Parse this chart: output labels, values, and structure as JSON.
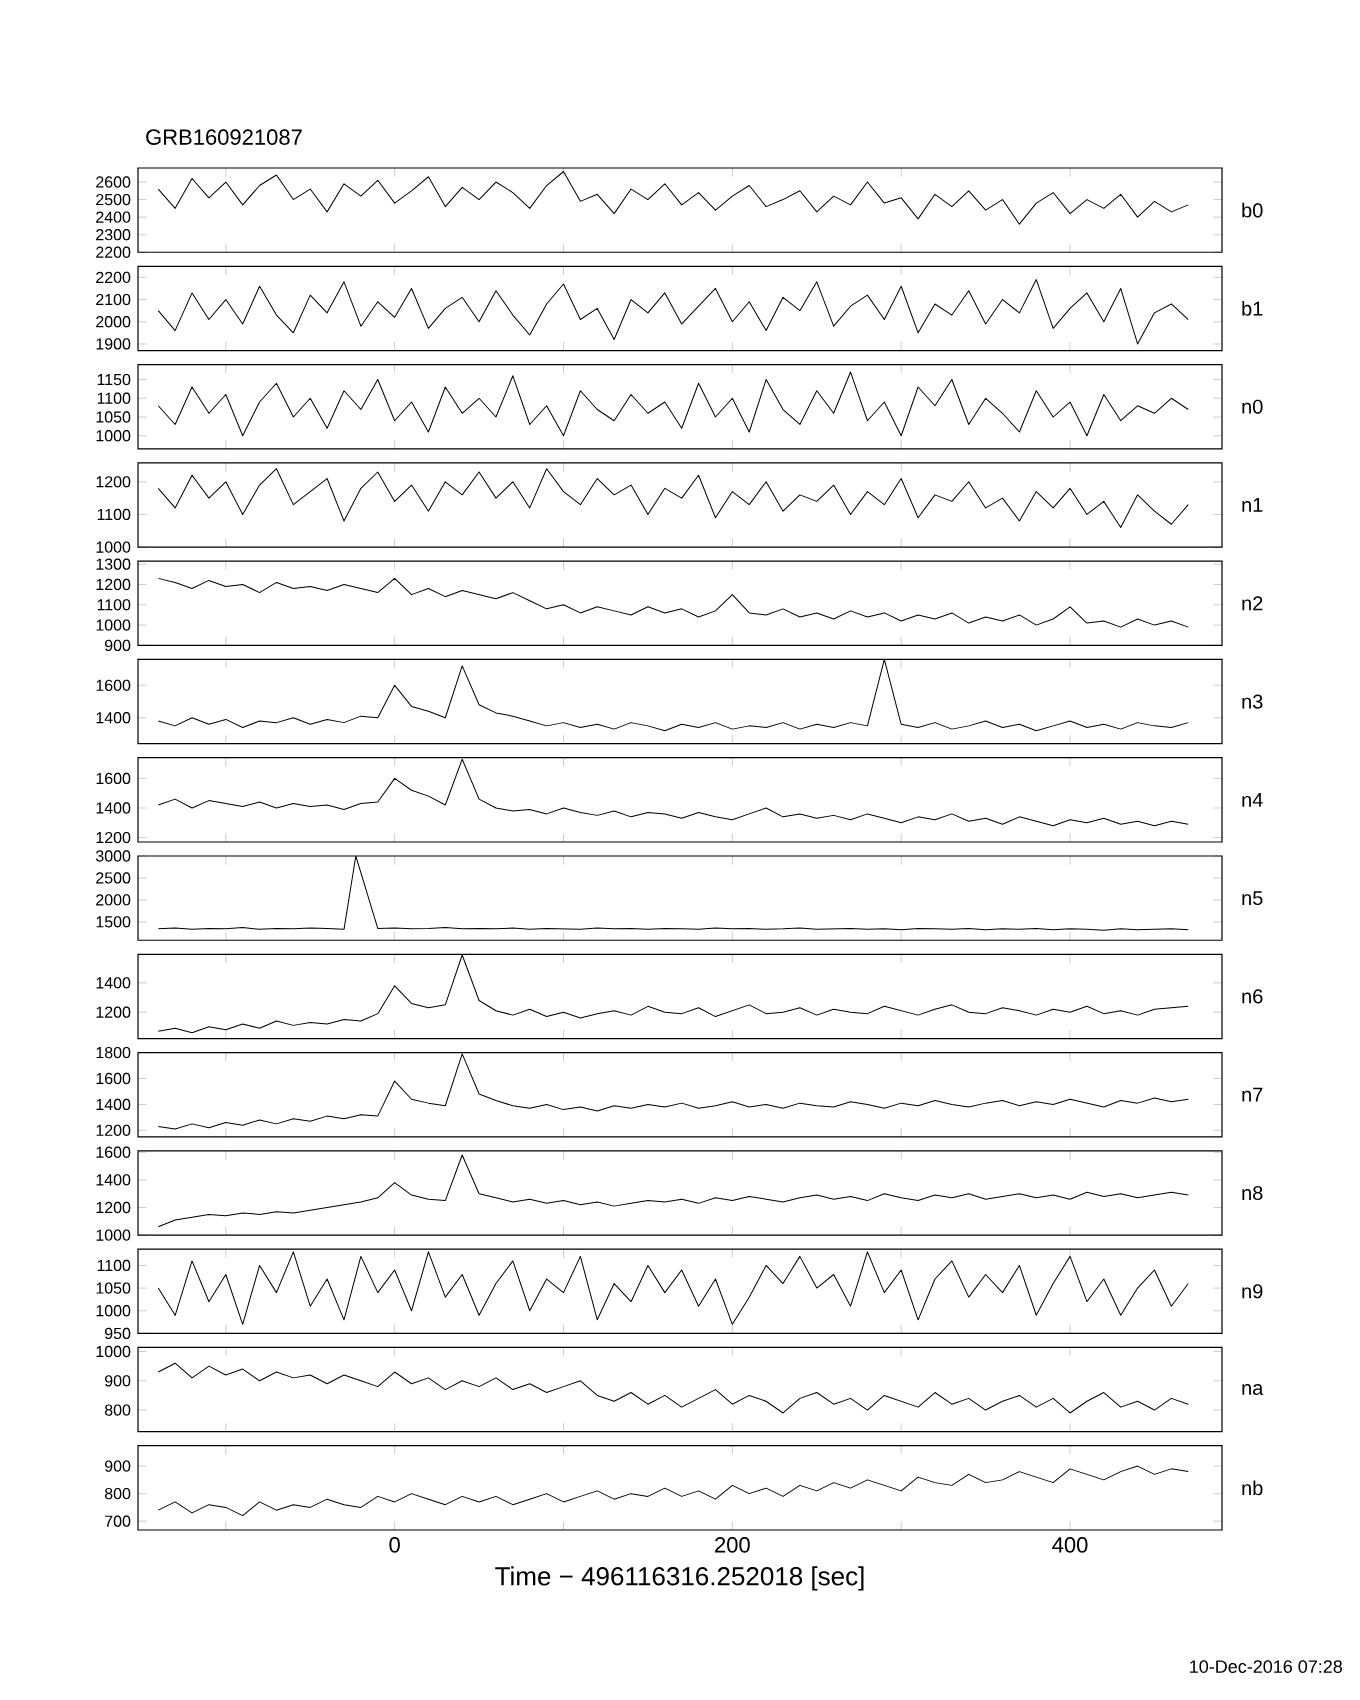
{
  "chart_data": [
    {
      "type": "line",
      "title": "GRB160921087",
      "y2label": "b0",
      "color": "#000000",
      "tick_labels": "y",
      "xlim": [
        -152,
        490
      ],
      "xticks": [
        {
          "value": -100,
          "label": null
        },
        0,
        {
          "value": 100,
          "label": null
        },
        200,
        {
          "value": 300,
          "label": null
        },
        400
      ],
      "ylim": [
        2200,
        2680
      ],
      "yticks": [
        2200,
        2300,
        2400,
        2500,
        2600
      ],
      "x": [
        -140,
        -130,
        -120,
        -110,
        -100,
        -90,
        -80,
        -70,
        -60,
        -50,
        -40,
        -30,
        -20,
        -10,
        0,
        10,
        20,
        30,
        40,
        50,
        60,
        70,
        80,
        90,
        100,
        110,
        120,
        130,
        140,
        150,
        160,
        170,
        180,
        190,
        200,
        210,
        220,
        230,
        240,
        250,
        260,
        270,
        280,
        290,
        300,
        310,
        320,
        330,
        340,
        350,
        360,
        370,
        380,
        390,
        400,
        410,
        420,
        430,
        440,
        450,
        460,
        470
      ],
      "values": [
        2560,
        2450,
        2620,
        2510,
        2600,
        2470,
        2580,
        2640,
        2500,
        2560,
        2430,
        2590,
        2520,
        2610,
        2480,
        2550,
        2630,
        2460,
        2570,
        2500,
        2600,
        2540,
        2450,
        2580,
        2660,
        2490,
        2530,
        2420,
        2560,
        2500,
        2590,
        2470,
        2540,
        2440,
        2520,
        2580,
        2460,
        2500,
        2550,
        2430,
        2520,
        2470,
        2600,
        2480,
        2510,
        2390,
        2530,
        2460,
        2550,
        2440,
        2500,
        2360,
        2480,
        2540,
        2420,
        2500,
        2450,
        2530,
        2400,
        2490,
        2430,
        2470
      ]
    },
    {
      "type": "line",
      "y2label": "b1",
      "color": "#000000",
      "tick_labels": "y",
      "xlim": [
        -152,
        490
      ],
      "xticks": [
        {
          "value": -100,
          "label": null
        },
        0,
        {
          "value": 100,
          "label": null
        },
        200,
        {
          "value": 300,
          "label": null
        },
        400
      ],
      "ylim": [
        1870,
        2250
      ],
      "yticks": [
        1900,
        2000,
        2100,
        2200
      ],
      "x": [
        -140,
        -130,
        -120,
        -110,
        -100,
        -90,
        -80,
        -70,
        -60,
        -50,
        -40,
        -30,
        -20,
        -10,
        0,
        10,
        20,
        30,
        40,
        50,
        60,
        70,
        80,
        90,
        100,
        110,
        120,
        130,
        140,
        150,
        160,
        170,
        180,
        190,
        200,
        210,
        220,
        230,
        240,
        250,
        260,
        270,
        280,
        290,
        300,
        310,
        320,
        330,
        340,
        350,
        360,
        370,
        380,
        390,
        400,
        410,
        420,
        430,
        440,
        450,
        460,
        470
      ],
      "values": [
        2050,
        1960,
        2130,
        2010,
        2100,
        1990,
        2160,
        2030,
        1950,
        2120,
        2040,
        2180,
        1980,
        2090,
        2020,
        2150,
        1970,
        2060,
        2110,
        2000,
        2140,
        2030,
        1940,
        2080,
        2170,
        2010,
        2060,
        1920,
        2100,
        2040,
        2130,
        1990,
        2070,
        2150,
        2000,
        2090,
        1960,
        2110,
        2050,
        2180,
        1980,
        2070,
        2120,
        2010,
        2160,
        1950,
        2080,
        2030,
        2140,
        1990,
        2100,
        2040,
        2190,
        1970,
        2060,
        2130,
        2000,
        2150,
        1900,
        2040,
        2080,
        2010
      ]
    },
    {
      "type": "line",
      "y2label": "n0",
      "color": "#000000",
      "tick_labels": "y",
      "xlim": [
        -152,
        490
      ],
      "xticks": [
        {
          "value": -100,
          "label": null
        },
        0,
        {
          "value": 100,
          "label": null
        },
        200,
        {
          "value": 300,
          "label": null
        },
        400
      ],
      "ylim": [
        965,
        1190
      ],
      "yticks": [
        1000,
        1050,
        1100,
        1150
      ],
      "x": [
        -140,
        -130,
        -120,
        -110,
        -100,
        -90,
        -80,
        -70,
        -60,
        -50,
        -40,
        -30,
        -20,
        -10,
        0,
        10,
        20,
        30,
        40,
        50,
        60,
        70,
        80,
        90,
        100,
        110,
        120,
        130,
        140,
        150,
        160,
        170,
        180,
        190,
        200,
        210,
        220,
        230,
        240,
        250,
        260,
        270,
        280,
        290,
        300,
        310,
        320,
        330,
        340,
        350,
        360,
        370,
        380,
        390,
        400,
        410,
        420,
        430,
        440,
        450,
        460,
        470
      ],
      "values": [
        1080,
        1030,
        1130,
        1060,
        1110,
        1000,
        1090,
        1140,
        1050,
        1100,
        1020,
        1120,
        1070,
        1150,
        1040,
        1090,
        1010,
        1130,
        1060,
        1100,
        1050,
        1160,
        1030,
        1080,
        1000,
        1120,
        1070,
        1040,
        1110,
        1060,
        1090,
        1020,
        1140,
        1050,
        1100,
        1010,
        1150,
        1070,
        1030,
        1120,
        1060,
        1170,
        1040,
        1090,
        1000,
        1130,
        1080,
        1150,
        1030,
        1100,
        1060,
        1010,
        1120,
        1050,
        1090,
        1000,
        1110,
        1040,
        1080,
        1060,
        1100,
        1070
      ]
    },
    {
      "type": "line",
      "y2label": "n1",
      "color": "#000000",
      "tick_labels": "y",
      "xlim": [
        -152,
        490
      ],
      "xticks": [
        {
          "value": -100,
          "label": null
        },
        0,
        {
          "value": 100,
          "label": null
        },
        200,
        {
          "value": 300,
          "label": null
        },
        400
      ],
      "ylim": [
        1000,
        1258
      ],
      "yticks": [
        1000,
        1100,
        1200
      ],
      "x": [
        -140,
        -130,
        -120,
        -110,
        -100,
        -90,
        -80,
        -70,
        -60,
        -50,
        -40,
        -30,
        -20,
        -10,
        0,
        10,
        20,
        30,
        40,
        50,
        60,
        70,
        80,
        90,
        100,
        110,
        120,
        130,
        140,
        150,
        160,
        170,
        180,
        190,
        200,
        210,
        220,
        230,
        240,
        250,
        260,
        270,
        280,
        290,
        300,
        310,
        320,
        330,
        340,
        350,
        360,
        370,
        380,
        390,
        400,
        410,
        420,
        430,
        440,
        450,
        460,
        470
      ],
      "values": [
        1180,
        1120,
        1220,
        1150,
        1200,
        1100,
        1190,
        1240,
        1130,
        1170,
        1210,
        1080,
        1180,
        1230,
        1140,
        1190,
        1110,
        1200,
        1160,
        1230,
        1150,
        1200,
        1120,
        1240,
        1170,
        1130,
        1210,
        1160,
        1190,
        1100,
        1180,
        1150,
        1220,
        1090,
        1170,
        1130,
        1200,
        1110,
        1160,
        1140,
        1190,
        1100,
        1170,
        1130,
        1210,
        1090,
        1160,
        1140,
        1200,
        1120,
        1150,
        1080,
        1170,
        1120,
        1180,
        1100,
        1140,
        1060,
        1160,
        1110,
        1070,
        1130
      ]
    },
    {
      "type": "line",
      "y2label": "n2",
      "color": "#000000",
      "tick_labels": "y",
      "xlim": [
        -152,
        490
      ],
      "xticks": [
        {
          "value": -100,
          "label": null
        },
        0,
        {
          "value": 100,
          "label": null
        },
        200,
        {
          "value": 300,
          "label": null
        },
        400
      ],
      "ylim": [
        900,
        1315
      ],
      "yticks": [
        900,
        1000,
        1100,
        1200,
        1300
      ],
      "x": [
        -140,
        -130,
        -120,
        -110,
        -100,
        -90,
        -80,
        -70,
        -60,
        -50,
        -40,
        -30,
        -20,
        -10,
        0,
        10,
        20,
        30,
        40,
        50,
        60,
        70,
        80,
        90,
        100,
        110,
        120,
        130,
        140,
        150,
        160,
        170,
        180,
        190,
        200,
        210,
        220,
        230,
        240,
        250,
        260,
        270,
        280,
        290,
        300,
        310,
        320,
        330,
        340,
        350,
        360,
        370,
        380,
        390,
        400,
        410,
        420,
        430,
        440,
        450,
        460,
        470
      ],
      "values": [
        1230,
        1210,
        1180,
        1220,
        1190,
        1200,
        1160,
        1210,
        1180,
        1190,
        1170,
        1200,
        1180,
        1160,
        1230,
        1150,
        1180,
        1140,
        1170,
        1150,
        1130,
        1160,
        1120,
        1080,
        1100,
        1060,
        1090,
        1070,
        1050,
        1090,
        1060,
        1080,
        1040,
        1070,
        1150,
        1060,
        1050,
        1080,
        1040,
        1060,
        1030,
        1070,
        1040,
        1060,
        1020,
        1050,
        1030,
        1060,
        1010,
        1040,
        1020,
        1050,
        1000,
        1030,
        1090,
        1010,
        1020,
        990,
        1030,
        1000,
        1020,
        990
      ]
    },
    {
      "type": "line",
      "y2label": "n3",
      "color": "#000000",
      "tick_labels": "y",
      "xlim": [
        -152,
        490
      ],
      "xticks": [
        {
          "value": -100,
          "label": null
        },
        0,
        {
          "value": 100,
          "label": null
        },
        200,
        {
          "value": 300,
          "label": null
        },
        400
      ],
      "ylim": [
        1240,
        1760
      ],
      "yticks": [
        1400,
        1600
      ],
      "x": [
        -140,
        -130,
        -120,
        -110,
        -100,
        -90,
        -80,
        -70,
        -60,
        -50,
        -40,
        -30,
        -20,
        -10,
        0,
        10,
        20,
        30,
        40,
        50,
        60,
        70,
        80,
        90,
        100,
        110,
        120,
        130,
        140,
        150,
        160,
        170,
        180,
        190,
        200,
        210,
        220,
        230,
        240,
        250,
        260,
        270,
        280,
        290,
        300,
        310,
        320,
        330,
        340,
        350,
        360,
        370,
        380,
        390,
        400,
        410,
        420,
        430,
        440,
        450,
        460,
        470
      ],
      "values": [
        1380,
        1350,
        1400,
        1360,
        1390,
        1340,
        1380,
        1370,
        1400,
        1360,
        1390,
        1370,
        1410,
        1400,
        1600,
        1470,
        1440,
        1400,
        1720,
        1480,
        1430,
        1410,
        1380,
        1350,
        1370,
        1340,
        1360,
        1330,
        1370,
        1350,
        1320,
        1360,
        1340,
        1370,
        1330,
        1350,
        1340,
        1370,
        1330,
        1360,
        1340,
        1370,
        1350,
        1760,
        1360,
        1340,
        1370,
        1330,
        1350,
        1380,
        1340,
        1360,
        1320,
        1350,
        1380,
        1340,
        1360,
        1330,
        1370,
        1350,
        1340,
        1370
      ]
    },
    {
      "type": "line",
      "y2label": "n4",
      "color": "#000000",
      "tick_labels": "y",
      "xlim": [
        -152,
        490
      ],
      "xticks": [
        {
          "value": -100,
          "label": null
        },
        0,
        {
          "value": 100,
          "label": null
        },
        200,
        {
          "value": 300,
          "label": null
        },
        400
      ],
      "ylim": [
        1170,
        1740
      ],
      "yticks": [
        1200,
        1400,
        1600
      ],
      "x": [
        -140,
        -130,
        -120,
        -110,
        -100,
        -90,
        -80,
        -70,
        -60,
        -50,
        -40,
        -30,
        -20,
        -10,
        0,
        10,
        20,
        30,
        40,
        50,
        60,
        70,
        80,
        90,
        100,
        110,
        120,
        130,
        140,
        150,
        160,
        170,
        180,
        190,
        200,
        210,
        220,
        230,
        240,
        250,
        260,
        270,
        280,
        290,
        300,
        310,
        320,
        330,
        340,
        350,
        360,
        370,
        380,
        390,
        400,
        410,
        420,
        430,
        440,
        450,
        460,
        470
      ],
      "values": [
        1420,
        1460,
        1400,
        1450,
        1430,
        1410,
        1440,
        1400,
        1430,
        1410,
        1420,
        1390,
        1430,
        1440,
        1600,
        1520,
        1480,
        1420,
        1730,
        1460,
        1400,
        1380,
        1390,
        1360,
        1400,
        1370,
        1350,
        1380,
        1340,
        1370,
        1360,
        1330,
        1370,
        1340,
        1320,
        1360,
        1400,
        1340,
        1360,
        1330,
        1350,
        1320,
        1360,
        1330,
        1300,
        1340,
        1320,
        1360,
        1310,
        1330,
        1290,
        1340,
        1310,
        1280,
        1320,
        1300,
        1330,
        1290,
        1310,
        1280,
        1310,
        1290
      ]
    },
    {
      "type": "line",
      "y2label": "n5",
      "color": "#000000",
      "tick_labels": "y",
      "xlim": [
        -152,
        490
      ],
      "xticks": [
        {
          "value": -100,
          "label": null
        },
        0,
        {
          "value": 100,
          "label": null
        },
        200,
        {
          "value": 300,
          "label": null
        },
        400
      ],
      "ylim": [
        1080,
        3000
      ],
      "yticks": [
        1500,
        2000,
        2500,
        3000
      ],
      "x": [
        -140,
        -130,
        -120,
        -110,
        -100,
        -90,
        -80,
        -70,
        -60,
        -50,
        -40,
        -30,
        -23,
        -10,
        0,
        10,
        20,
        30,
        40,
        50,
        60,
        70,
        80,
        90,
        100,
        110,
        120,
        130,
        140,
        150,
        160,
        170,
        180,
        190,
        200,
        210,
        220,
        230,
        240,
        250,
        260,
        270,
        280,
        290,
        300,
        310,
        320,
        330,
        340,
        350,
        360,
        370,
        380,
        390,
        400,
        410,
        420,
        430,
        440,
        450,
        460,
        470
      ],
      "values": [
        1340,
        1360,
        1330,
        1350,
        1340,
        1370,
        1330,
        1350,
        1340,
        1360,
        1350,
        1330,
        3000,
        1350,
        1360,
        1340,
        1350,
        1370,
        1340,
        1350,
        1340,
        1360,
        1330,
        1350,
        1340,
        1330,
        1360,
        1340,
        1350,
        1330,
        1350,
        1340,
        1330,
        1360,
        1340,
        1350,
        1330,
        1340,
        1360,
        1330,
        1340,
        1350,
        1330,
        1340,
        1320,
        1350,
        1340,
        1330,
        1350,
        1320,
        1340,
        1330,
        1350,
        1320,
        1340,
        1330,
        1310,
        1340,
        1320,
        1330,
        1340,
        1320
      ]
    },
    {
      "type": "line",
      "y2label": "n6",
      "color": "#000000",
      "tick_labels": "y",
      "xlim": [
        -152,
        490
      ],
      "xticks": [
        {
          "value": -100,
          "label": null
        },
        0,
        {
          "value": 100,
          "label": null
        },
        200,
        {
          "value": 300,
          "label": null
        },
        400
      ],
      "ylim": [
        1020,
        1595
      ],
      "yticks": [
        1200,
        1400
      ],
      "x": [
        -140,
        -130,
        -120,
        -110,
        -100,
        -90,
        -80,
        -70,
        -60,
        -50,
        -40,
        -30,
        -20,
        -10,
        0,
        10,
        20,
        30,
        40,
        50,
        60,
        70,
        80,
        90,
        100,
        110,
        120,
        130,
        140,
        150,
        160,
        170,
        180,
        190,
        200,
        210,
        220,
        230,
        240,
        250,
        260,
        270,
        280,
        290,
        300,
        310,
        320,
        330,
        340,
        350,
        360,
        370,
        380,
        390,
        400,
        410,
        420,
        430,
        440,
        450,
        460,
        470
      ],
      "values": [
        1070,
        1090,
        1060,
        1100,
        1080,
        1120,
        1090,
        1140,
        1110,
        1130,
        1120,
        1150,
        1140,
        1190,
        1380,
        1260,
        1230,
        1250,
        1590,
        1280,
        1210,
        1180,
        1220,
        1170,
        1200,
        1160,
        1190,
        1210,
        1180,
        1240,
        1200,
        1190,
        1230,
        1170,
        1210,
        1250,
        1190,
        1200,
        1230,
        1180,
        1220,
        1200,
        1190,
        1240,
        1210,
        1180,
        1220,
        1250,
        1200,
        1190,
        1230,
        1210,
        1180,
        1220,
        1200,
        1240,
        1190,
        1210,
        1180,
        1220,
        1230,
        1240
      ]
    },
    {
      "type": "line",
      "y2label": "n7",
      "color": "#000000",
      "tick_labels": "y",
      "xlim": [
        -152,
        490
      ],
      "xticks": [
        {
          "value": -100,
          "label": null
        },
        0,
        {
          "value": 100,
          "label": null
        },
        200,
        {
          "value": 300,
          "label": null
        },
        400
      ],
      "ylim": [
        1150,
        1800
      ],
      "yticks": [
        1200,
        1400,
        1600,
        1800
      ],
      "x": [
        -140,
        -130,
        -120,
        -110,
        -100,
        -90,
        -80,
        -70,
        -60,
        -50,
        -40,
        -30,
        -20,
        -10,
        0,
        10,
        20,
        30,
        40,
        50,
        60,
        70,
        80,
        90,
        100,
        110,
        120,
        130,
        140,
        150,
        160,
        170,
        180,
        190,
        200,
        210,
        220,
        230,
        240,
        250,
        260,
        270,
        280,
        290,
        300,
        310,
        320,
        330,
        340,
        350,
        360,
        370,
        380,
        390,
        400,
        410,
        420,
        430,
        440,
        450,
        460,
        470
      ],
      "values": [
        1230,
        1210,
        1250,
        1220,
        1260,
        1240,
        1280,
        1250,
        1290,
        1270,
        1310,
        1290,
        1320,
        1310,
        1580,
        1440,
        1410,
        1390,
        1790,
        1480,
        1430,
        1390,
        1370,
        1400,
        1360,
        1380,
        1350,
        1390,
        1370,
        1400,
        1380,
        1410,
        1370,
        1390,
        1420,
        1380,
        1400,
        1370,
        1410,
        1390,
        1380,
        1420,
        1400,
        1370,
        1410,
        1390,
        1430,
        1400,
        1380,
        1410,
        1430,
        1390,
        1420,
        1400,
        1440,
        1410,
        1380,
        1430,
        1410,
        1450,
        1420,
        1440
      ]
    },
    {
      "type": "line",
      "y2label": "n8",
      "color": "#000000",
      "tick_labels": "y",
      "xlim": [
        -152,
        490
      ],
      "xticks": [
        {
          "value": -100,
          "label": null
        },
        0,
        {
          "value": 100,
          "label": null
        },
        200,
        {
          "value": 300,
          "label": null
        },
        400
      ],
      "ylim": [
        1000,
        1610
      ],
      "yticks": [
        1000,
        1200,
        1400,
        1600
      ],
      "x": [
        -140,
        -130,
        -120,
        -110,
        -100,
        -90,
        -80,
        -70,
        -60,
        -50,
        -40,
        -30,
        -20,
        -10,
        0,
        10,
        20,
        30,
        40,
        50,
        60,
        70,
        80,
        90,
        100,
        110,
        120,
        130,
        140,
        150,
        160,
        170,
        180,
        190,
        200,
        210,
        220,
        230,
        240,
        250,
        260,
        270,
        280,
        290,
        300,
        310,
        320,
        330,
        340,
        350,
        360,
        370,
        380,
        390,
        400,
        410,
        420,
        430,
        440,
        450,
        460,
        470
      ],
      "values": [
        1060,
        1110,
        1130,
        1150,
        1140,
        1160,
        1150,
        1170,
        1160,
        1180,
        1200,
        1220,
        1240,
        1270,
        1380,
        1290,
        1260,
        1250,
        1580,
        1300,
        1270,
        1240,
        1260,
        1230,
        1250,
        1220,
        1240,
        1210,
        1230,
        1250,
        1240,
        1260,
        1230,
        1270,
        1250,
        1280,
        1260,
        1240,
        1270,
        1290,
        1260,
        1280,
        1250,
        1300,
        1270,
        1250,
        1290,
        1270,
        1300,
        1260,
        1280,
        1300,
        1270,
        1290,
        1260,
        1310,
        1280,
        1300,
        1270,
        1290,
        1310,
        1290
      ]
    },
    {
      "type": "line",
      "y2label": "n9",
      "color": "#000000",
      "tick_labels": "y",
      "xlim": [
        -152,
        490
      ],
      "xticks": [
        {
          "value": -100,
          "label": null
        },
        0,
        {
          "value": 100,
          "label": null
        },
        200,
        {
          "value": 300,
          "label": null
        },
        400
      ],
      "ylim": [
        950,
        1136
      ],
      "yticks": [
        950,
        1000,
        1050,
        1100
      ],
      "x": [
        -140,
        -130,
        -120,
        -110,
        -100,
        -90,
        -80,
        -70,
        -60,
        -50,
        -40,
        -30,
        -20,
        -10,
        0,
        10,
        20,
        30,
        40,
        50,
        60,
        70,
        80,
        90,
        100,
        110,
        120,
        130,
        140,
        150,
        160,
        170,
        180,
        190,
        200,
        210,
        220,
        230,
        240,
        250,
        260,
        270,
        280,
        290,
        300,
        310,
        320,
        330,
        340,
        350,
        360,
        370,
        380,
        390,
        400,
        410,
        420,
        430,
        440,
        450,
        460,
        470
      ],
      "values": [
        1050,
        990,
        1110,
        1020,
        1080,
        970,
        1100,
        1040,
        1130,
        1010,
        1070,
        980,
        1120,
        1040,
        1090,
        1000,
        1130,
        1030,
        1080,
        990,
        1060,
        1110,
        1000,
        1070,
        1040,
        1120,
        980,
        1060,
        1020,
        1100,
        1040,
        1090,
        1010,
        1070,
        970,
        1030,
        1100,
        1060,
        1120,
        1050,
        1080,
        1010,
        1130,
        1040,
        1090,
        980,
        1070,
        1110,
        1030,
        1080,
        1040,
        1100,
        990,
        1060,
        1120,
        1020,
        1070,
        990,
        1050,
        1090,
        1010,
        1060
      ]
    },
    {
      "type": "line",
      "y2label": "na",
      "color": "#000000",
      "tick_labels": "y",
      "xlim": [
        -152,
        490
      ],
      "xticks": [
        {
          "value": -100,
          "label": null
        },
        0,
        {
          "value": 100,
          "label": null
        },
        200,
        {
          "value": 300,
          "label": null
        },
        400
      ],
      "ylim": [
        726,
        1014
      ],
      "yticks": [
        800,
        900,
        1000
      ],
      "x": [
        -140,
        -130,
        -120,
        -110,
        -100,
        -90,
        -80,
        -70,
        -60,
        -50,
        -40,
        -30,
        -20,
        -10,
        0,
        10,
        20,
        30,
        40,
        50,
        60,
        70,
        80,
        90,
        100,
        110,
        120,
        130,
        140,
        150,
        160,
        170,
        180,
        190,
        200,
        210,
        220,
        230,
        240,
        250,
        260,
        270,
        280,
        290,
        300,
        310,
        320,
        330,
        340,
        350,
        360,
        370,
        380,
        390,
        400,
        410,
        420,
        430,
        440,
        450,
        460,
        470
      ],
      "values": [
        930,
        960,
        910,
        950,
        920,
        940,
        900,
        930,
        910,
        920,
        890,
        920,
        900,
        880,
        930,
        890,
        910,
        870,
        900,
        880,
        910,
        870,
        890,
        860,
        880,
        900,
        850,
        830,
        860,
        820,
        850,
        810,
        840,
        870,
        820,
        850,
        830,
        790,
        840,
        860,
        820,
        840,
        800,
        850,
        830,
        810,
        860,
        820,
        840,
        800,
        830,
        850,
        810,
        840,
        790,
        830,
        860,
        810,
        830,
        800,
        840,
        820
      ]
    },
    {
      "type": "line",
      "y2label": "nb",
      "color": "#000000",
      "xlabel": "Time − 496116316.252018 [sec]",
      "annotations": [
        "10-Dec-2016 07:28"
      ],
      "xlim": [
        -152,
        490
      ],
      "xticks": [
        {
          "value": -100,
          "label": null
        },
        0,
        {
          "value": 100,
          "label": null
        },
        200,
        {
          "value": 300,
          "label": null
        },
        400
      ],
      "ylim": [
        668,
        974
      ],
      "yticks": [
        700,
        800,
        900
      ],
      "x": [
        -140,
        -130,
        -120,
        -110,
        -100,
        -90,
        -80,
        -70,
        -60,
        -50,
        -40,
        -30,
        -20,
        -10,
        0,
        10,
        20,
        30,
        40,
        50,
        60,
        70,
        80,
        90,
        100,
        110,
        120,
        130,
        140,
        150,
        160,
        170,
        180,
        190,
        200,
        210,
        220,
        230,
        240,
        250,
        260,
        270,
        280,
        290,
        300,
        310,
        320,
        330,
        340,
        350,
        360,
        370,
        380,
        390,
        400,
        410,
        420,
        430,
        440,
        450,
        460,
        470
      ],
      "values": [
        740,
        770,
        730,
        760,
        750,
        720,
        770,
        740,
        760,
        750,
        780,
        760,
        750,
        790,
        770,
        800,
        780,
        760,
        790,
        770,
        790,
        760,
        780,
        800,
        770,
        790,
        810,
        780,
        800,
        790,
        820,
        790,
        810,
        780,
        830,
        800,
        820,
        790,
        830,
        810,
        840,
        820,
        850,
        830,
        810,
        860,
        840,
        830,
        870,
        840,
        850,
        880,
        860,
        840,
        890,
        870,
        850,
        880,
        900,
        870,
        890,
        880
      ]
    }
  ]
}
